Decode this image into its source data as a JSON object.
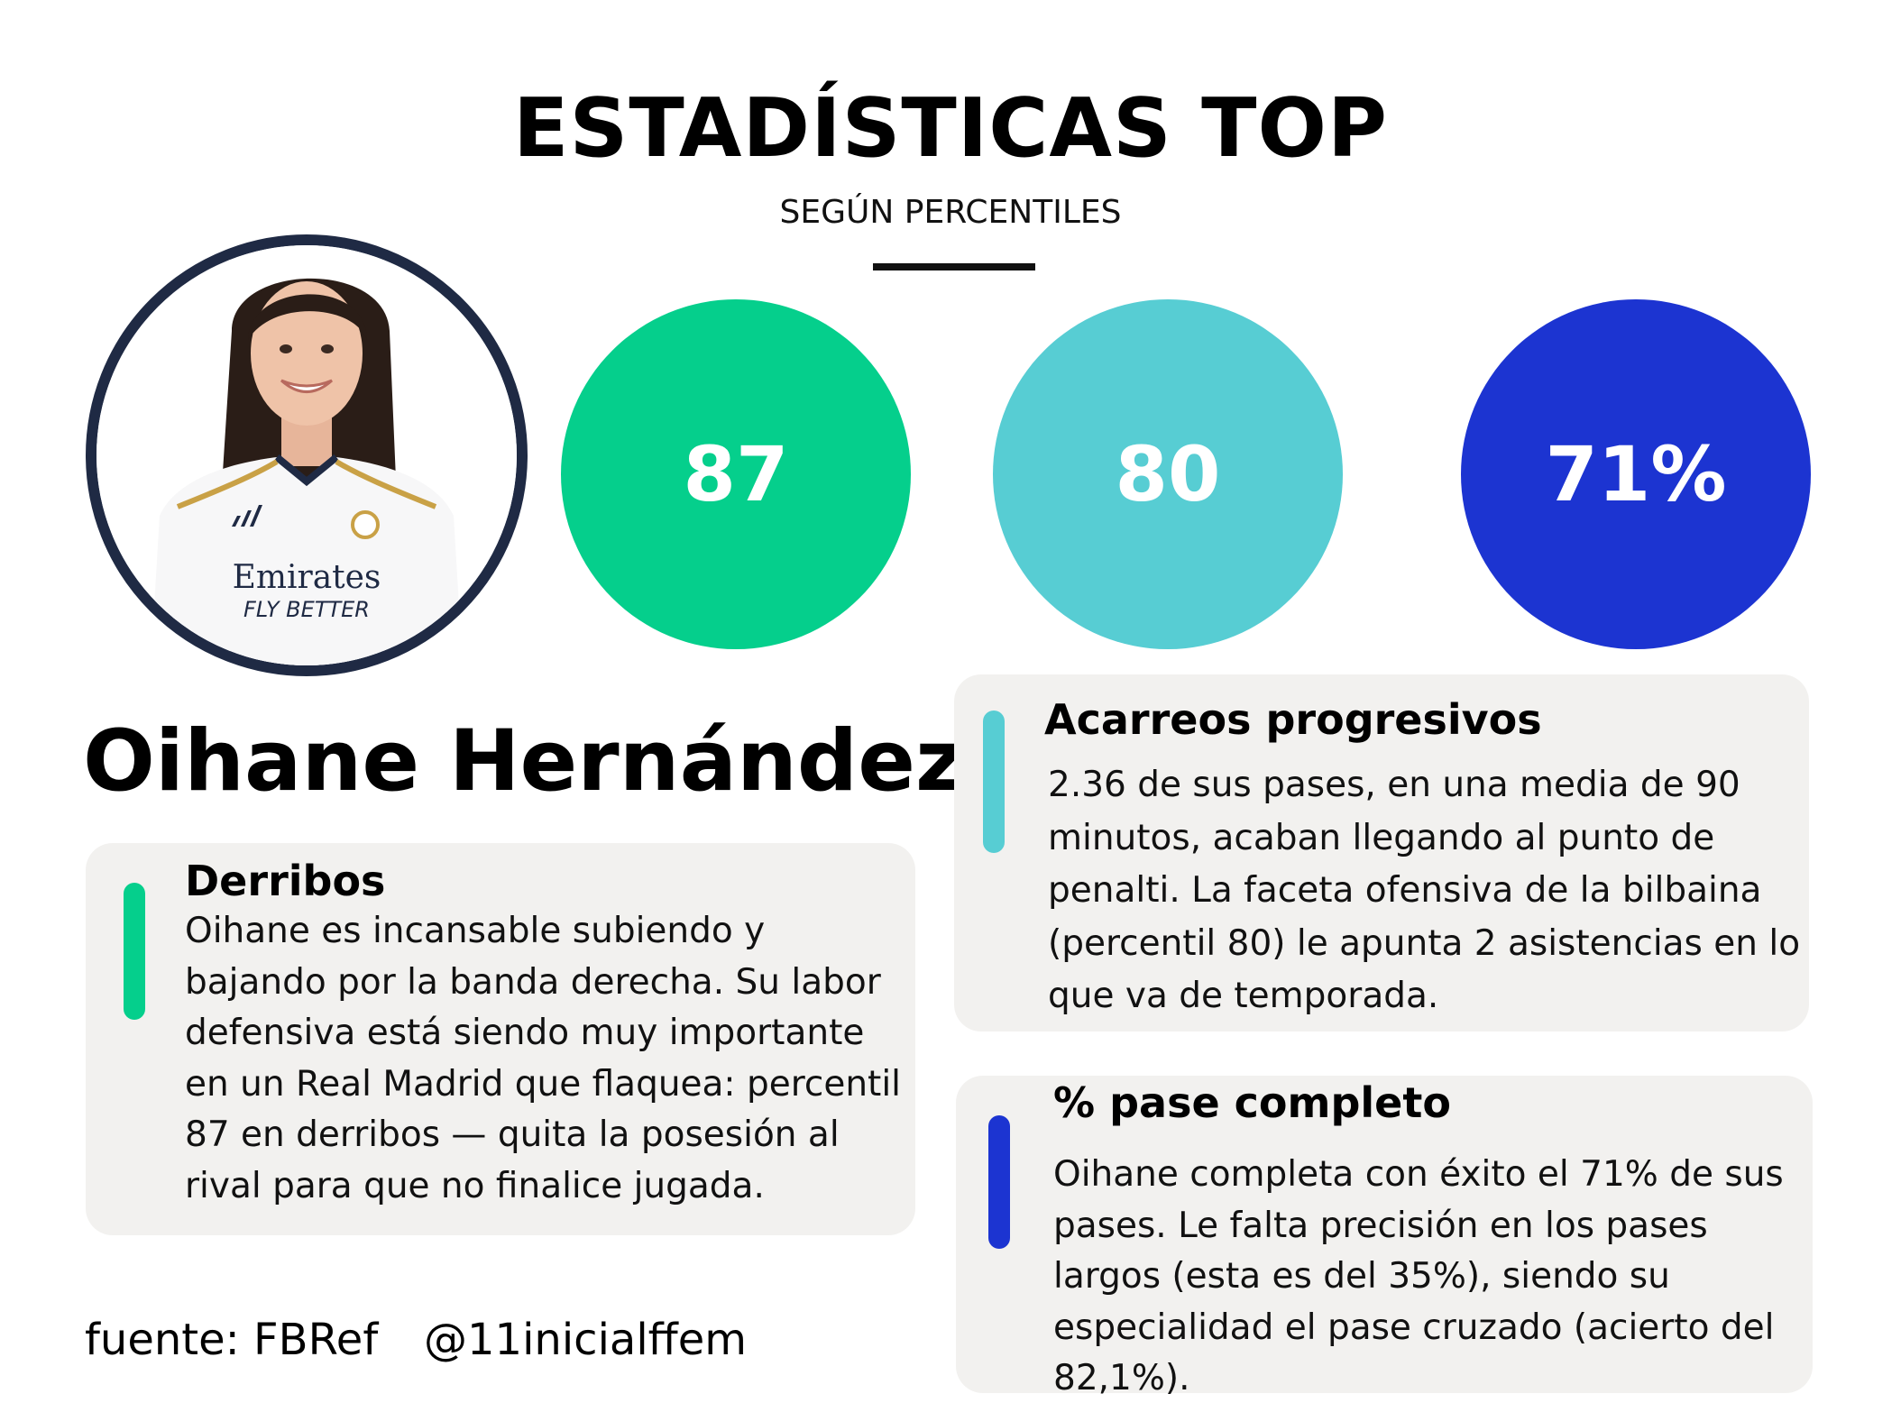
{
  "header": {
    "title": "ESTADÍSTICAS TOP",
    "subtitle": "SEGÚN PERCENTILES"
  },
  "player": {
    "name": "Oihane Hernández",
    "photo_sponsor_line1": "Emirates",
    "photo_sponsor_line2": "FLY BETTER"
  },
  "stats": [
    {
      "value": "87",
      "color": "#05cf8c"
    },
    {
      "value": "80",
      "color": "#57cdd3"
    },
    {
      "value": "71%",
      "color": "#1c34d1"
    }
  ],
  "cards": {
    "derribos": {
      "title": "Derribos",
      "text": "Oihane es incansable subiendo y bajando por la banda derecha. Su labor defensiva está siendo muy importante en un Real Madrid que flaquea: percentil 87 en derribos — quita la posesión al rival para que no finalice jugada.",
      "accent": "#05cf8c"
    },
    "acarreos": {
      "title": "Acarreos progresivos",
      "text": "2.36 de sus pases, en una media de 90 minutos, acaban llegando al punto de penalti. La faceta ofensiva de la bilbaina (percentil 80) le apunta 2 asistencias en lo que va de temporada.",
      "accent": "#57cdd3"
    },
    "pase": {
      "title": "% pase completo",
      "text": "Oihane completa con éxito el 71% de sus pases. Le falta precisión en los pases largos (esta es del 35%), siendo su especialidad el pase cruzado (acierto del 82,1%).",
      "accent": "#1c34d1"
    }
  },
  "footer": {
    "source": "fuente: FBRef",
    "handle": "@11inicialffem"
  }
}
